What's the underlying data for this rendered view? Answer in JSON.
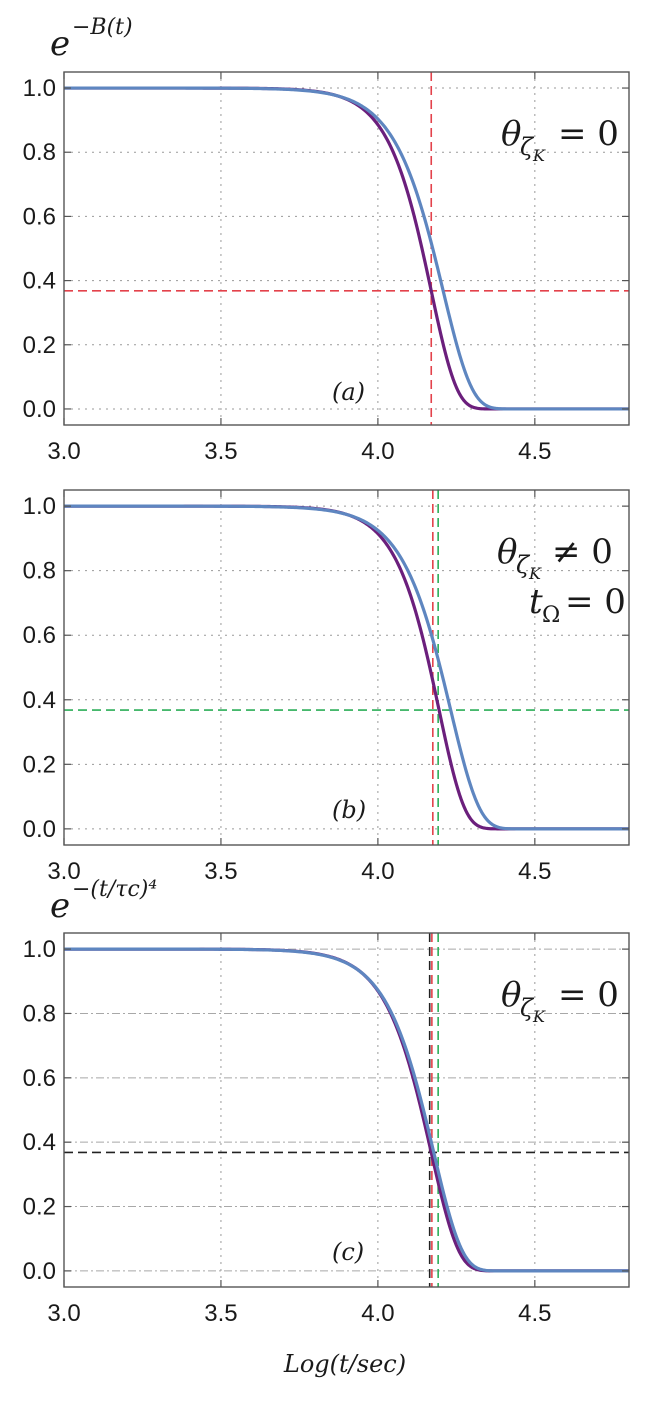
{
  "chart_data": [
    {
      "type": "line",
      "panel_tag": "(a)",
      "ylabel_base": "e",
      "ylabel_exp": "−B(t)",
      "annotations": [
        {
          "main": "θ",
          "sub": "ζ",
          "subsub": "K",
          "rel": "= 0"
        }
      ],
      "xlim": [
        3.0,
        4.8
      ],
      "ylim": [
        -0.05,
        1.05
      ],
      "xticks": [
        "3.0",
        "3.5",
        "4.0",
        "4.5"
      ],
      "yticks": [
        "1.0",
        "0.8",
        "0.6",
        "0.4",
        "0.2",
        "0.0"
      ],
      "grid": "dotted",
      "series": [
        {
          "name": "purple curve",
          "color": "#6b1f7c",
          "x0": 4.17,
          "slope": 12.4
        },
        {
          "name": "blue curve",
          "color": "#5e86c0",
          "x0": 4.208,
          "slope": 11.0
        }
      ],
      "reference_lines": [
        {
          "orientation": "vertical",
          "x": 4.17,
          "color": "#e3424b"
        },
        {
          "orientation": "horizontal",
          "y": 0.368,
          "color": "#e3424b"
        }
      ]
    },
    {
      "type": "line",
      "panel_tag": "(b)",
      "ylabel_base": "",
      "ylabel_exp": "",
      "annotations": [
        {
          "main": "θ",
          "sub": "ζ",
          "subsub": "K",
          "rel": "≠ 0"
        },
        {
          "main": "t",
          "sub": "Ω",
          "subsub": "",
          "rel": "= 0"
        }
      ],
      "xlim": [
        3.0,
        4.8
      ],
      "ylim": [
        -0.05,
        1.05
      ],
      "xticks": [
        "3.0",
        "3.5",
        "4.0",
        "4.5"
      ],
      "yticks": [
        "1.0",
        "0.8",
        "0.6",
        "0.4",
        "0.2",
        "0.0"
      ],
      "grid": "dotted",
      "series": [
        {
          "name": "purple curve",
          "color": "#6b1f7c",
          "x0": 4.195,
          "slope": 12.4
        },
        {
          "name": "blue curve",
          "color": "#5e86c0",
          "x0": 4.232,
          "slope": 11.0
        }
      ],
      "reference_lines": [
        {
          "orientation": "vertical",
          "x": 4.175,
          "color": "#e3424b"
        },
        {
          "orientation": "vertical",
          "x": 4.192,
          "color": "#2cae58"
        },
        {
          "orientation": "horizontal",
          "y": 0.368,
          "color": "#2cae58"
        }
      ]
    },
    {
      "type": "line",
      "panel_tag": "(c)",
      "ylabel_base": "e",
      "ylabel_exp": "−(t/τc)⁴",
      "annotations": [
        {
          "main": "θ",
          "sub": "ζ",
          "subsub": "K",
          "rel": "= 0"
        }
      ],
      "xlabel": "Log(t/sec)",
      "xlim": [
        3.0,
        4.8
      ],
      "ylim": [
        -0.05,
        1.05
      ],
      "xticks": [
        "3.0",
        "3.5",
        "4.0",
        "4.5"
      ],
      "yticks": [
        "1.0",
        "0.8",
        "0.6",
        "0.4",
        "0.2",
        "0.0"
      ],
      "grid": "dashdot-horizontal",
      "series": [
        {
          "name": "purple curve",
          "color": "#6b1f7c",
          "x0": 4.17,
          "slope": 11.6
        },
        {
          "name": "blue curve",
          "color": "#5e86c0",
          "x0": 4.178,
          "slope": 11.2
        }
      ],
      "reference_lines": [
        {
          "orientation": "vertical",
          "x": 4.165,
          "color": "#222222"
        },
        {
          "orientation": "vertical",
          "x": 4.172,
          "color": "#e3424b"
        },
        {
          "orientation": "vertical",
          "x": 4.192,
          "color": "#2cae58"
        },
        {
          "orientation": "horizontal",
          "y": 0.368,
          "color": "#222222"
        }
      ]
    }
  ]
}
